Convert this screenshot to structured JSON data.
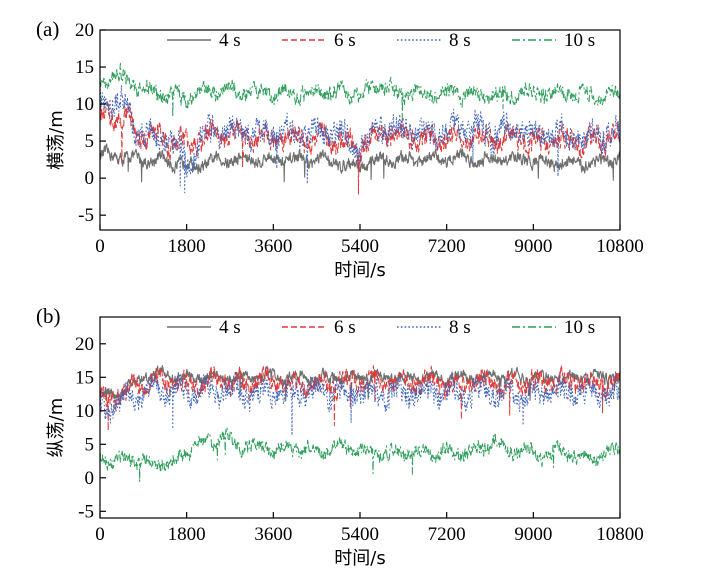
{
  "chart_data": [
    {
      "type": "line",
      "panel_label": "(a)",
      "xlabel": "时间/s",
      "ylabel": "横荡/m",
      "xlim": [
        0,
        10800
      ],
      "ylim": [
        -7,
        20
      ],
      "xticks": [
        "0",
        "1800",
        "3600",
        "5400",
        "7200",
        "9000",
        "10800"
      ],
      "yticks": [
        "-5",
        "0",
        "5",
        "10",
        "15",
        "20"
      ],
      "legend_position": "top",
      "series": [
        {
          "name": "4 s",
          "color": "#6f6f6f",
          "style": "solid",
          "x": [
            0,
            400,
            800,
            1200,
            1600,
            1800,
            1900,
            2200,
            2600,
            3000,
            3400,
            3800,
            4200,
            4600,
            5000,
            5400,
            5800,
            6200,
            6600,
            7000,
            7400,
            7800,
            8200,
            8600,
            9000,
            9400,
            9800,
            10200,
            10800
          ],
          "values": [
            3,
            3,
            2.5,
            2.5,
            2,
            2,
            1.5,
            2,
            2.5,
            2.5,
            2.5,
            2.5,
            2.5,
            2.5,
            2,
            1.5,
            2.5,
            2.5,
            2.5,
            2.5,
            3,
            2.5,
            2.5,
            2.5,
            2.5,
            2,
            2,
            2,
            2.5
          ]
        },
        {
          "name": "6 s",
          "color": "#e03a3a",
          "style": "dashed",
          "x": [
            0,
            400,
            800,
            1200,
            1600,
            1800,
            2200,
            2600,
            3000,
            3400,
            3800,
            4200,
            4600,
            5000,
            5400,
            5800,
            6200,
            6600,
            7000,
            7400,
            7800,
            8200,
            8600,
            9000,
            9400,
            9800,
            10200,
            10800
          ],
          "values": [
            8,
            9,
            6,
            5.5,
            5,
            4.5,
            5.5,
            6,
            5.5,
            5,
            5.5,
            5.5,
            5.5,
            5,
            4,
            6,
            6,
            5.5,
            5,
            5.5,
            5.5,
            5,
            5.5,
            5,
            5,
            5,
            5,
            5.5
          ]
        },
        {
          "name": "8 s",
          "color": "#3d63b8",
          "style": "dotted",
          "x": [
            0,
            400,
            800,
            1200,
            1600,
            1800,
            2200,
            2600,
            3000,
            3400,
            3800,
            4200,
            4600,
            5000,
            5400,
            5800,
            6200,
            6600,
            7000,
            7400,
            7800,
            8200,
            8600,
            9000,
            9400,
            9800,
            10200,
            10800
          ],
          "values": [
            10,
            10.5,
            6.5,
            5.5,
            4.5,
            2,
            6,
            6.5,
            6.5,
            6,
            6,
            6,
            6.5,
            6,
            4.5,
            7,
            6.5,
            6.5,
            6,
            6.5,
            6.5,
            6,
            6.5,
            6,
            6,
            5.5,
            5.5,
            6.5
          ]
        },
        {
          "name": "10 s",
          "color": "#2e9e5b",
          "style": "dashdot",
          "x": [
            0,
            400,
            800,
            1200,
            1600,
            1800,
            2200,
            2600,
            3000,
            3400,
            3800,
            4200,
            4600,
            5000,
            5400,
            5800,
            6200,
            6600,
            7000,
            7400,
            7800,
            8200,
            8600,
            9000,
            9400,
            9800,
            10200,
            10800
          ],
          "values": [
            13,
            14,
            12,
            11.5,
            11,
            11,
            11.5,
            12,
            11.5,
            11.5,
            11.5,
            11.5,
            11.5,
            11.5,
            11.5,
            12.5,
            11.5,
            11.5,
            11.5,
            11.5,
            11.5,
            11,
            11.5,
            11.5,
            11.5,
            11.5,
            11,
            11.5
          ]
        }
      ]
    },
    {
      "type": "line",
      "panel_label": "(b)",
      "xlabel": "时间/s",
      "ylabel": "纵荡/m",
      "xlim": [
        0,
        10800
      ],
      "ylim": [
        -6,
        24
      ],
      "xticks": [
        "0",
        "1800",
        "3600",
        "5400",
        "7200",
        "9000",
        "10800"
      ],
      "yticks": [
        "-5",
        "0",
        "5",
        "10",
        "15",
        "20"
      ],
      "legend_position": "top",
      "series": [
        {
          "name": "4 s",
          "color": "#6f6f6f",
          "style": "solid",
          "x": [
            0,
            300,
            600,
            900,
            1200,
            1800,
            2400,
            3000,
            3600,
            4200,
            4800,
            5400,
            6000,
            6600,
            7200,
            7800,
            8400,
            9000,
            9600,
            10200,
            10800
          ],
          "values": [
            12.5,
            12.5,
            13.5,
            15,
            15.5,
            15,
            15,
            15,
            15,
            15,
            15,
            15,
            15,
            15,
            15,
            15,
            15,
            15,
            15,
            15,
            15
          ]
        },
        {
          "name": "6 s",
          "color": "#e03a3a",
          "style": "dashed",
          "x": [
            0,
            300,
            600,
            900,
            1200,
            1800,
            2400,
            3000,
            3600,
            4200,
            4800,
            5400,
            6000,
            6600,
            7200,
            7800,
            8400,
            9000,
            9600,
            10200,
            10800
          ],
          "values": [
            11.5,
            12,
            13,
            14,
            14.5,
            14,
            14.5,
            14,
            14.5,
            14,
            14,
            14.5,
            14,
            14.5,
            14,
            14.5,
            14,
            14,
            14.5,
            14,
            14
          ]
        },
        {
          "name": "8 s",
          "color": "#3d63b8",
          "style": "dotted",
          "x": [
            0,
            300,
            600,
            900,
            1200,
            1800,
            2400,
            3000,
            3600,
            4200,
            4800,
            5400,
            6000,
            6600,
            7200,
            7800,
            8400,
            9000,
            9600,
            10200,
            10800
          ],
          "values": [
            11,
            11,
            12,
            13,
            13,
            12.5,
            13,
            12.5,
            13,
            13,
            12.5,
            13,
            12.5,
            13,
            12.5,
            13,
            12.5,
            12.5,
            13,
            12.5,
            12.5
          ]
        },
        {
          "name": "10 s",
          "color": "#2e9e5b",
          "style": "dashdot",
          "x": [
            0,
            300,
            600,
            900,
            1200,
            1500,
            1800,
            2100,
            2400,
            2600,
            2800,
            3200,
            3600,
            4000,
            4400,
            4800,
            5200,
            5600,
            6000,
            6400,
            6800,
            7200,
            7600,
            8000,
            8200,
            8400,
            8800,
            9200,
            9600,
            10000,
            10400,
            10800
          ],
          "values": [
            3,
            2.5,
            3,
            2.5,
            2.5,
            2,
            4,
            5,
            5.5,
            6.5,
            4.5,
            5,
            4,
            4.5,
            4,
            4.5,
            4.5,
            4,
            3.5,
            4,
            3.5,
            4,
            3.5,
            4.5,
            6,
            4,
            4,
            3.5,
            4,
            3,
            3,
            4.5
          ]
        }
      ]
    }
  ]
}
